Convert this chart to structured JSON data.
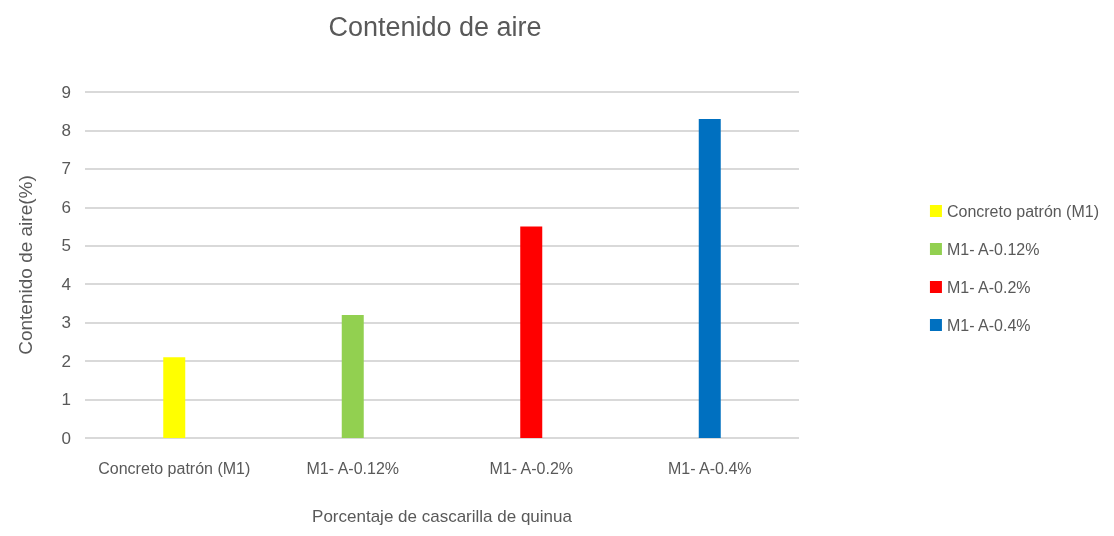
{
  "chart_data": {
    "type": "bar",
    "title": "Contenido de aire",
    "xlabel": "Porcentaje de cascarilla de quinua",
    "ylabel": "Contenido de aire(%)",
    "categories": [
      "Concreto patrón (M1)",
      "M1- A-0.12%",
      "M1- A-0.2%",
      "M1- A-0.4%"
    ],
    "series": [
      {
        "name": "Concreto patrón (M1)",
        "color": "#ffff00",
        "values": [
          2.1,
          null,
          null,
          null
        ]
      },
      {
        "name": "M1- A-0.12%",
        "color": "#92d050",
        "values": [
          null,
          3.2,
          null,
          null
        ]
      },
      {
        "name": "M1- A-0.2%",
        "color": "#ff0000",
        "values": [
          null,
          null,
          5.5,
          null
        ]
      },
      {
        "name": "M1- A-0.4%",
        "color": "#0070c0",
        "values": [
          null,
          null,
          null,
          8.3
        ]
      }
    ],
    "stacked": true,
    "ylim": [
      0,
      9
    ],
    "yticks": [
      0,
      1,
      2,
      3,
      4,
      5,
      6,
      7,
      8,
      9
    ],
    "grid": "y",
    "legend": "right"
  }
}
